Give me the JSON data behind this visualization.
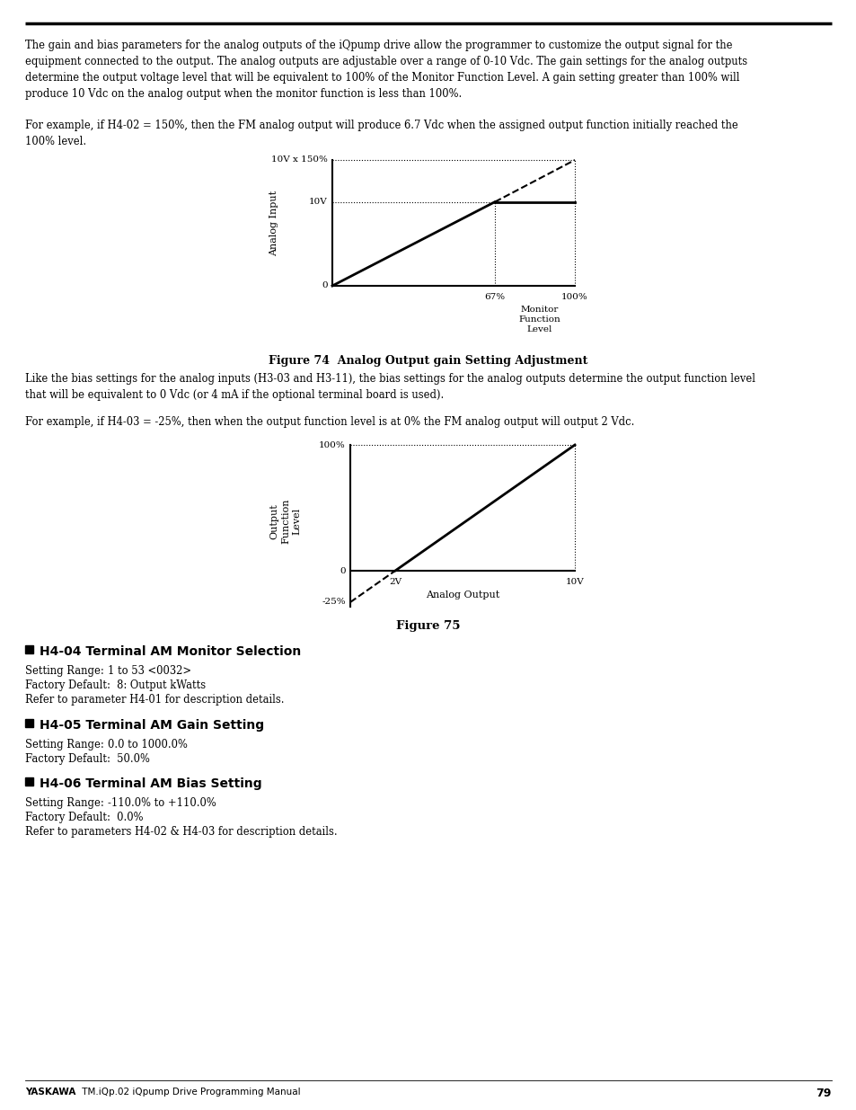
{
  "bg_color": "#ffffff",
  "body_text_1": "The gain and bias parameters for the analog outputs of the iQpump drive allow the programmer to customize the output signal for the\nequipment connected to the output. The analog outputs are adjustable over a range of 0-10 Vdc. The gain settings for the analog outputs\ndetermine the output voltage level that will be equivalent to 100% of the Monitor Function Level. A gain setting greater than 100% will\nproduce 10 Vdc on the analog output when the monitor function is less than 100%.",
  "body_text_2": "For example, if H4-02 = 150%, then the FM analog output will produce 6.7 Vdc when the assigned output function initially reached the\n100% level.",
  "fig74_caption": "Figure 74  Analog Output gain Setting Adjustment",
  "body_text_3": "Like the bias settings for the analog inputs (H3-03 and H3-11), the bias settings for the analog outputs determine the output function level\nthat will be equivalent to 0 Vdc (or 4 mA if the optional terminal board is used).",
  "body_text_4": "For example, if H4-03 = -25%, then when the output function level is at 0% the FM analog output will output 2 Vdc.",
  "fig75_caption": "Figure 75",
  "h404_header": "H4-04 Terminal AM Monitor Selection",
  "h404_range_label": "Setting Range:",
  "h404_range_val": "   1 to 53 <0032>",
  "h404_default": "Factory Default:  8: Output kWatts",
  "h404_refer": "Refer to parameter H4-01 for description details.",
  "h405_header": "H4-05 Terminal AM Gain Setting",
  "h405_range_label": "Setting Range:",
  "h405_range_val": "   0.0 to 1000.0%",
  "h405_default": "Factory Default:  50.0%",
  "h406_header": "H4-06 Terminal AM Bias Setting",
  "h406_range_label": "Setting Range:",
  "h406_range_val": "   -110.0% to +110.0%",
  "h406_default": "Factory Default:  0.0%",
  "h406_refer": "Refer to parameters H4-02 & H4-03 for description details.",
  "footer_bold": "YASKAWA",
  "footer_normal": " TM.iQp.02 iQpump Drive Programming Manual",
  "footer_page": "79",
  "text_color": "#000000"
}
